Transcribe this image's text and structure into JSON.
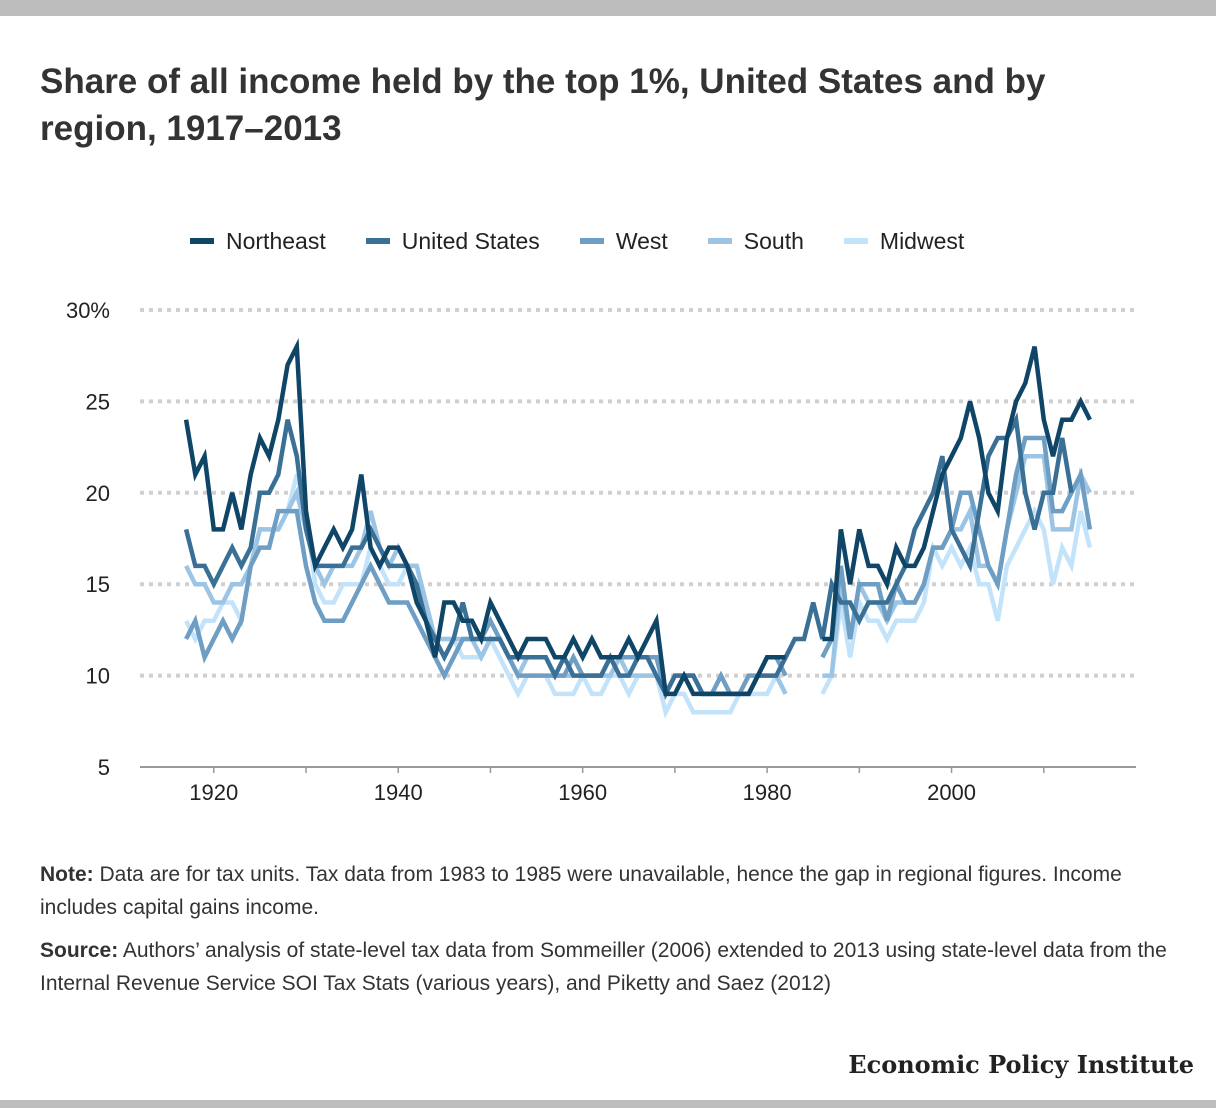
{
  "title": "Share of all income held by the top 1%, United States and by region, 1917–2013",
  "note_label": "Note:",
  "note_text": " Data are for tax units. Tax data from 1983 to 1985 were unavailable, hence the gap in regional figures. Income includes capital gains income.",
  "source_label": "Source:",
  "source_text": " Authors’ analysis of state-level tax data from Sommeiller (2006) extended to 2013 using state-level data from the Internal Revenue Service SOI Tax Stats (various years), and Piketty and Saez (2012)",
  "brand": "Economic Policy Institute",
  "chart_data": {
    "type": "line",
    "title": "Share of all income held by the top 1%, United States and by region, 1917–2013",
    "xlabel": "",
    "ylabel": "",
    "xlim": [
      1912,
      2020
    ],
    "ylim": [
      5,
      30
    ],
    "x_ticks": [
      1920,
      1940,
      1960,
      1980,
      2000
    ],
    "y_ticks": [
      5,
      10,
      15,
      20,
      25,
      30
    ],
    "y_tick_labels": [
      "5",
      "10",
      "15",
      "20",
      "25",
      "30%"
    ],
    "grid": "horizontal dotted",
    "legend_position": "top",
    "start_year": 1917,
    "series": [
      {
        "name": "Midwest",
        "color": "#c3e3fb",
        "values": [
          13,
          12,
          13,
          13,
          14,
          14,
          13,
          16,
          18,
          18,
          18,
          19,
          21,
          19,
          15,
          14,
          14,
          15,
          15,
          15,
          17,
          16,
          15,
          15,
          16,
          16,
          14,
          12,
          12,
          12,
          11,
          11,
          11,
          12,
          11,
          10,
          9,
          10,
          10,
          10,
          9,
          9,
          9,
          10,
          9,
          9,
          10,
          10,
          9,
          10,
          10,
          10,
          8,
          9,
          9,
          8,
          8,
          8,
          8,
          8,
          9,
          9,
          9,
          9,
          10,
          9,
          9,
          10,
          14,
          11,
          14,
          13,
          13,
          12,
          13,
          13,
          13,
          14,
          17,
          16,
          17,
          16,
          17,
          15,
          15,
          13,
          16,
          17,
          18,
          19,
          18,
          15,
          17,
          16,
          19,
          17
        ]
      },
      {
        "name": "South",
        "color": "#9cc5e5",
        "values": [
          16,
          15,
          15,
          14,
          14,
          15,
          15,
          16,
          18,
          18,
          18,
          19,
          20,
          18,
          16,
          15,
          16,
          16,
          16,
          17,
          19,
          17,
          16,
          17,
          16,
          16,
          14,
          12,
          12,
          12,
          12,
          12,
          11,
          12,
          12,
          11,
          10,
          11,
          11,
          11,
          10,
          10,
          10,
          10,
          10,
          10,
          10,
          11,
          10,
          10,
          10,
          10,
          9,
          9,
          10,
          10,
          9,
          9,
          9,
          9,
          9,
          9,
          10,
          10,
          10,
          9,
          10,
          10,
          15,
          12,
          15,
          14,
          14,
          13,
          14,
          14,
          14,
          15,
          17,
          17,
          18,
          18,
          19,
          16,
          16,
          15,
          18,
          20,
          22,
          22,
          22,
          18,
          18,
          18,
          21,
          20
        ]
      },
      {
        "name": "West",
        "color": "#6e9ec3",
        "values": [
          12,
          13,
          11,
          12,
          13,
          12,
          13,
          16,
          17,
          17,
          19,
          19,
          19,
          16,
          14,
          13,
          13,
          13,
          14,
          15,
          16,
          15,
          14,
          14,
          14,
          13,
          12,
          11,
          10,
          11,
          12,
          12,
          12,
          13,
          12,
          11,
          10,
          10,
          10,
          10,
          10,
          10,
          11,
          10,
          10,
          10,
          11,
          11,
          11,
          11,
          11,
          11,
          9,
          10,
          10,
          10,
          9,
          9,
          10,
          9,
          9,
          10,
          10,
          11,
          11,
          10,
          11,
          12,
          16,
          12,
          15,
          15,
          15,
          13,
          15,
          14,
          14,
          15,
          17,
          17,
          18,
          20,
          20,
          18,
          16,
          15,
          18,
          21,
          23,
          23,
          23,
          19,
          19,
          20,
          21,
          18
        ]
      },
      {
        "name": "United States",
        "color": "#3a7096",
        "values": [
          18,
          16,
          16,
          15,
          16,
          17,
          16,
          17,
          20,
          20,
          21,
          24,
          22,
          18,
          16,
          16,
          16,
          16,
          17,
          17,
          18,
          17,
          16,
          16,
          16,
          15,
          13,
          12,
          11,
          12,
          14,
          12,
          12,
          12,
          12,
          11,
          11,
          11,
          11,
          11,
          10,
          11,
          10,
          10,
          10,
          10,
          11,
          10,
          10,
          11,
          11,
          10,
          9,
          10,
          10,
          10,
          9,
          9,
          9,
          9,
          9,
          9,
          10,
          10,
          10,
          11,
          12,
          12,
          14,
          12,
          15,
          14,
          14,
          13,
          14,
          14,
          14,
          15,
          16,
          18,
          19,
          20,
          22,
          18,
          17,
          16,
          19,
          22,
          23,
          23,
          24,
          20,
          18,
          20,
          20,
          23,
          20
        ]
      },
      {
        "name": "Northeast",
        "color": "#0f4566",
        "values": [
          24,
          21,
          22,
          18,
          18,
          20,
          18,
          21,
          23,
          22,
          24,
          27,
          28,
          19,
          16,
          17,
          18,
          17,
          18,
          21,
          17,
          16,
          17,
          17,
          16,
          14,
          13,
          11,
          14,
          14,
          13,
          13,
          12,
          14,
          13,
          12,
          11,
          12,
          12,
          12,
          11,
          11,
          12,
          11,
          12,
          11,
          11,
          11,
          12,
          11,
          12,
          13,
          9,
          9,
          10,
          9,
          9,
          9,
          9,
          9,
          9,
          9,
          10,
          11,
          11,
          11,
          12,
          12,
          18,
          15,
          18,
          16,
          16,
          15,
          17,
          16,
          16,
          17,
          19,
          21,
          22,
          23,
          25,
          23,
          20,
          19,
          23,
          25,
          26,
          28,
          24,
          22,
          24,
          24,
          25,
          24
        ]
      }
    ],
    "gaps": {
      "Midwest": [
        1983,
        1984,
        1985
      ],
      "South": [
        1983,
        1984,
        1985
      ],
      "West": [
        1983,
        1984,
        1985
      ],
      "Northeast": [
        1983,
        1984,
        1985
      ]
    },
    "legend_order": [
      "Northeast",
      "United States",
      "West",
      "South",
      "Midwest"
    ]
  }
}
